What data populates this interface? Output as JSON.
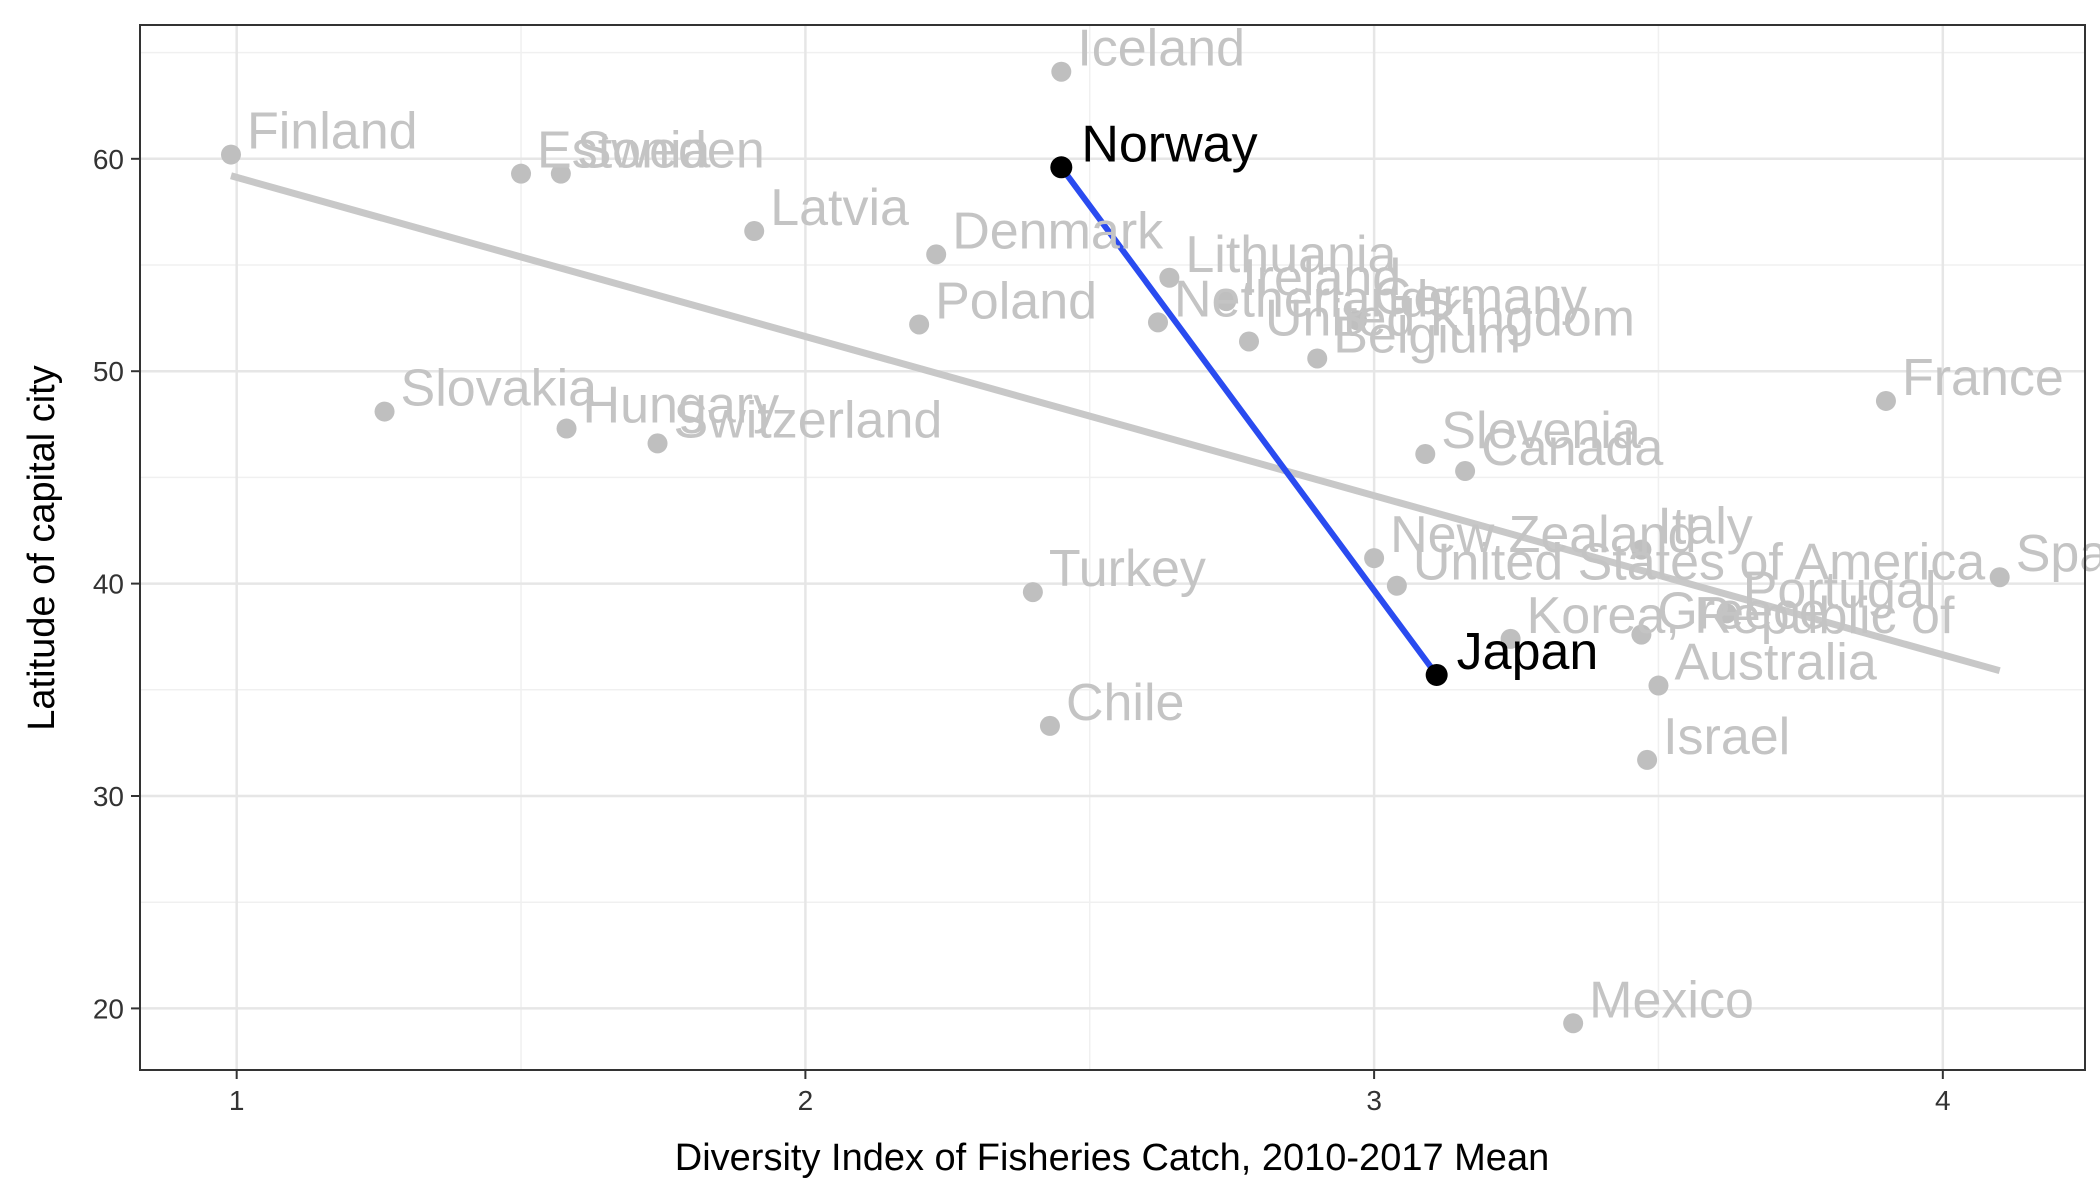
{
  "chart_data": {
    "type": "scatter",
    "title": "",
    "xlabel": "Diversity Index of Fisheries Catch, 2010-2017 Mean",
    "ylabel": "Latitude of capital city",
    "xlim": [
      0.83,
      4.25
    ],
    "ylim": [
      17.1,
      66.3
    ],
    "x_ticks": [
      1,
      2,
      3,
      4
    ],
    "y_ticks": [
      20,
      30,
      40,
      50,
      60
    ],
    "grid": true,
    "colors": {
      "context_point": "#bfbfbf",
      "context_label": "#c4c4c4",
      "trend_line": "#c8c8c8",
      "highlight_point": "#000000",
      "highlight_label": "#000000",
      "highlight_line": "#2a4bf0"
    },
    "trend_line": {
      "x": [
        0.99,
        4.1
      ],
      "y": [
        59.2,
        35.9
      ]
    },
    "highlight_segment": {
      "from": "Norway",
      "to": "Japan"
    },
    "points": [
      {
        "label": "Finland",
        "x": 0.99,
        "y": 60.2,
        "highlight": false
      },
      {
        "label": "Estonia",
        "x": 1.5,
        "y": 59.3,
        "highlight": false
      },
      {
        "label": "Sweden",
        "x": 1.57,
        "y": 59.3,
        "highlight": false
      },
      {
        "label": "Iceland",
        "x": 2.45,
        "y": 64.1,
        "highlight": false
      },
      {
        "label": "Norway",
        "x": 2.45,
        "y": 59.6,
        "highlight": true
      },
      {
        "label": "Latvia",
        "x": 1.91,
        "y": 56.6,
        "highlight": false
      },
      {
        "label": "Denmark",
        "x": 2.23,
        "y": 55.5,
        "highlight": false
      },
      {
        "label": "Lithuania",
        "x": 2.64,
        "y": 54.4,
        "highlight": false
      },
      {
        "label": "Ireland",
        "x": 2.74,
        "y": 53.3,
        "highlight": false
      },
      {
        "label": "Netherlands",
        "x": 2.62,
        "y": 52.3,
        "highlight": false
      },
      {
        "label": "Germany",
        "x": 2.97,
        "y": 52.4,
        "highlight": false
      },
      {
        "label": "United Kingdom",
        "x": 2.78,
        "y": 51.4,
        "highlight": false
      },
      {
        "label": "Belgium",
        "x": 2.9,
        "y": 50.6,
        "highlight": false
      },
      {
        "label": "Poland",
        "x": 2.2,
        "y": 52.2,
        "highlight": false
      },
      {
        "label": "Slovakia",
        "x": 1.26,
        "y": 48.1,
        "highlight": false
      },
      {
        "label": "Hungary",
        "x": 1.58,
        "y": 47.3,
        "highlight": false
      },
      {
        "label": "Switzerland",
        "x": 1.74,
        "y": 46.6,
        "highlight": false
      },
      {
        "label": "France",
        "x": 3.9,
        "y": 48.6,
        "highlight": false
      },
      {
        "label": "Slovenia",
        "x": 3.09,
        "y": 46.1,
        "highlight": false
      },
      {
        "label": "Canada",
        "x": 3.16,
        "y": 45.3,
        "highlight": false
      },
      {
        "label": "New Zealand",
        "x": 3.0,
        "y": 41.2,
        "highlight": false
      },
      {
        "label": "United States of America",
        "x": 3.04,
        "y": 39.9,
        "highlight": false
      },
      {
        "label": "Italy",
        "x": 3.47,
        "y": 41.6,
        "highlight": false
      },
      {
        "label": "Spain",
        "x": 4.1,
        "y": 40.3,
        "highlight": false
      },
      {
        "label": "Turkey",
        "x": 2.4,
        "y": 39.6,
        "highlight": false
      },
      {
        "label": "Portugal",
        "x": 3.62,
        "y": 38.6,
        "highlight": false
      },
      {
        "label": "Greece",
        "x": 3.47,
        "y": 37.6,
        "highlight": false
      },
      {
        "label": "Korea, Republic of",
        "x": 3.24,
        "y": 37.4,
        "highlight": false
      },
      {
        "label": "Japan",
        "x": 3.11,
        "y": 35.7,
        "highlight": true
      },
      {
        "label": "Australia",
        "x": 3.5,
        "y": 35.2,
        "highlight": false
      },
      {
        "label": "Chile",
        "x": 2.43,
        "y": 33.3,
        "highlight": false
      },
      {
        "label": "Israel",
        "x": 3.48,
        "y": 31.7,
        "highlight": false
      },
      {
        "label": "Mexico",
        "x": 3.35,
        "y": 19.3,
        "highlight": false
      }
    ]
  }
}
